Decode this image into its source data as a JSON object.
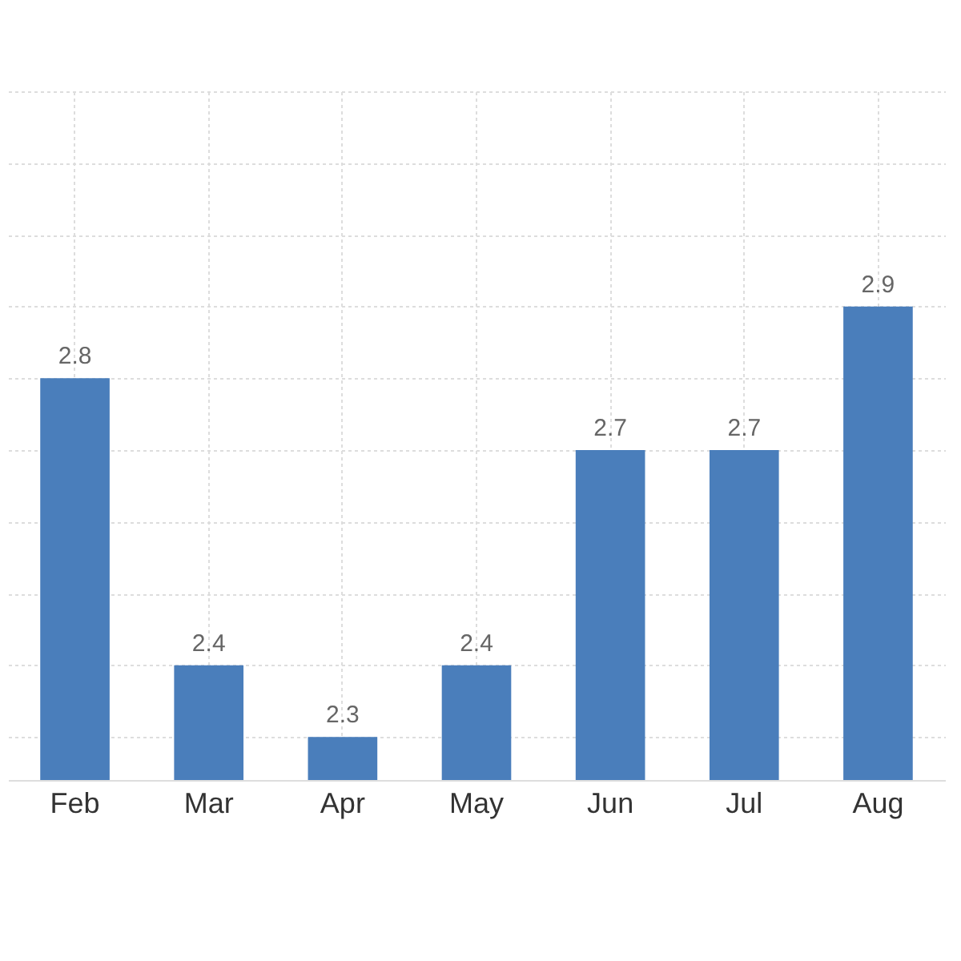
{
  "chart_data": {
    "type": "bar",
    "categories": [
      "Feb",
      "Mar",
      "Apr",
      "May",
      "Jun",
      "Jul",
      "Aug"
    ],
    "values": [
      2.8,
      2.4,
      2.3,
      2.4,
      2.7,
      2.7,
      2.9
    ],
    "color": "#4a7ebb",
    "data_labels": true,
    "ylim": [
      2.24,
      3.2
    ],
    "yticks": [
      {
        "value": 2.3,
        "label": null
      },
      {
        "value": 2.4,
        "label": null
      },
      {
        "value": 2.5,
        "label": null
      },
      {
        "value": 2.6,
        "label": null
      },
      {
        "value": 2.7,
        "label": null
      },
      {
        "value": 2.8,
        "label": null
      },
      {
        "value": 2.9,
        "label": null
      },
      {
        "value": 3.0,
        "label": null
      },
      {
        "value": 3.1,
        "label": null
      },
      {
        "value": 3.2,
        "label": null
      }
    ],
    "grid": true,
    "tick_labels": "x"
  }
}
